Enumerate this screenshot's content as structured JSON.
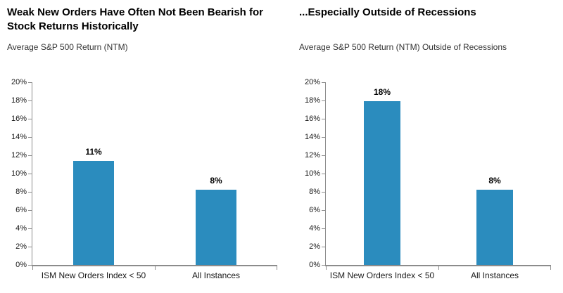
{
  "page": {
    "background": "#ffffff"
  },
  "charts_meta": {
    "axis_color": "#8c8c8c",
    "bar_color": "#2b8cbe",
    "title_color": "#000000",
    "text_color": "#1a1a1a"
  },
  "chart_data": [
    {
      "type": "bar",
      "title": "Weak New Orders Have Often Not Been Bearish for Stock Returns Historically",
      "subtitle": "Average S&P 500 Return (NTM)",
      "categories": [
        "ISM New Orders Index < 50",
        "All Instances"
      ],
      "values": [
        11.4,
        8.2
      ],
      "value_labels": [
        "11%",
        "8%"
      ],
      "ylim": [
        0,
        20
      ],
      "ytick_step": 2,
      "ytick_labels": [
        "0%",
        "2%",
        "4%",
        "6%",
        "8%",
        "10%",
        "12%",
        "14%",
        "16%",
        "18%",
        "20%"
      ],
      "grid": false,
      "legend_position": "none"
    },
    {
      "type": "bar",
      "title": "...Especially Outside of Recessions",
      "subtitle": "Average S&P 500 Return (NTM) Outside of Recessions",
      "categories": [
        "ISM New Orders Index < 50",
        "All Instances"
      ],
      "values": [
        17.9,
        8.2
      ],
      "value_labels": [
        "18%",
        "8%"
      ],
      "ylim": [
        0,
        20
      ],
      "ytick_step": 2,
      "ytick_labels": [
        "0%",
        "2%",
        "4%",
        "6%",
        "8%",
        "10%",
        "12%",
        "14%",
        "16%",
        "18%",
        "20%"
      ],
      "grid": false,
      "legend_position": "none"
    }
  ]
}
